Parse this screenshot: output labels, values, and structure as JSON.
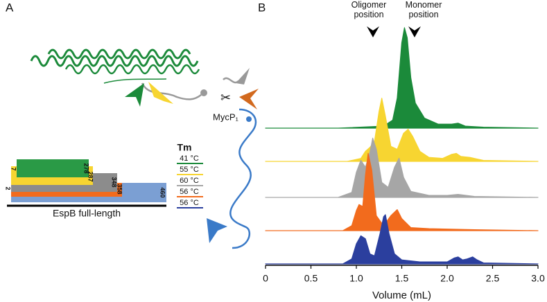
{
  "panel_a": {
    "label": "A",
    "protease_label": "MycP₁",
    "tm_title": "Tm",
    "tm_values": [
      "41 °C",
      "55 °C",
      "60 °C",
      "56 °C",
      "56 °C"
    ],
    "start_labels": [
      7,
      2
    ],
    "end_labels": [
      278,
      287,
      348,
      358,
      460
    ],
    "bar_caption": "EspB full-length"
  },
  "chart_data": {
    "type": "ridgeline",
    "panel_label": "B",
    "x_label": "Volume (mL)",
    "annotations": [
      "Oligomer position",
      "Monomer position"
    ],
    "xlim": [
      0,
      3
    ],
    "xticks": [
      0,
      0.5,
      {
        "value": 1,
        "label": "1.0"
      },
      1.5,
      {
        "value": 2,
        "label": "2.0"
      },
      2.5,
      {
        "value": 3,
        "label": "3.0"
      }
    ],
    "series": [
      {
        "color": "#1b8a3a",
        "x": [
          0,
          0.8,
          1.3,
          1.4,
          1.45,
          1.5,
          1.53,
          1.56,
          1.6,
          1.65,
          1.75,
          1.9,
          2.05,
          2.12,
          2.2,
          2.4,
          3.0
        ],
        "values": [
          0,
          0,
          0.02,
          0.08,
          0.3,
          0.85,
          1.0,
          0.9,
          0.5,
          0.25,
          0.1,
          0.04,
          0.04,
          0.05,
          0.02,
          0.01,
          0
        ]
      },
      {
        "color": "#f7d531",
        "x": [
          0,
          0.9,
          1.05,
          1.1,
          1.15,
          1.2,
          1.25,
          1.28,
          1.32,
          1.38,
          1.45,
          1.52,
          1.57,
          1.62,
          1.7,
          1.8,
          1.95,
          2.05,
          2.1,
          2.15,
          2.25,
          2.3,
          2.4,
          3.0
        ],
        "values": [
          0,
          0,
          0.03,
          0.1,
          0.14,
          0.2,
          0.5,
          0.63,
          0.45,
          0.15,
          0.12,
          0.28,
          0.32,
          0.25,
          0.1,
          0.04,
          0.03,
          0.07,
          0.08,
          0.05,
          0.04,
          0.03,
          0.01,
          0
        ]
      },
      {
        "color": "#a6a6a6",
        "x": [
          0,
          0.8,
          0.95,
          1.0,
          1.05,
          1.1,
          1.15,
          1.18,
          1.22,
          1.28,
          1.35,
          1.42,
          1.47,
          1.52,
          1.6,
          1.8,
          2.0,
          2.12,
          2.3,
          3.0
        ],
        "values": [
          0,
          0,
          0.05,
          0.25,
          0.37,
          0.3,
          0.45,
          0.59,
          0.48,
          0.15,
          0.1,
          0.3,
          0.39,
          0.2,
          0.06,
          0.02,
          0.02,
          0.03,
          0.01,
          0
        ]
      },
      {
        "color": "#f26b1d",
        "x": [
          0,
          0.85,
          0.95,
          1.0,
          1.03,
          1.07,
          1.1,
          1.13,
          1.17,
          1.22,
          1.3,
          1.38,
          1.45,
          1.5,
          1.6,
          1.8,
          2.3,
          3.0
        ],
        "values": [
          0,
          0,
          0.05,
          0.2,
          0.26,
          0.24,
          0.55,
          0.77,
          0.6,
          0.15,
          0.05,
          0.15,
          0.21,
          0.12,
          0.03,
          0.02,
          0.01,
          0
        ]
      },
      {
        "color": "#2b3f9e",
        "x": [
          0,
          0.85,
          0.95,
          1.0,
          1.05,
          1.1,
          1.15,
          1.2,
          1.26,
          1.3,
          1.32,
          1.36,
          1.42,
          1.5,
          1.7,
          2.0,
          2.08,
          2.12,
          2.17,
          2.22,
          2.28,
          2.33,
          2.4,
          3.0
        ],
        "values": [
          0,
          0,
          0.05,
          0.2,
          0.28,
          0.25,
          0.1,
          0.08,
          0.3,
          0.47,
          0.49,
          0.3,
          0.1,
          0.04,
          0.02,
          0.02,
          0.06,
          0.07,
          0.04,
          0.05,
          0.07,
          0.04,
          0.01,
          0
        ]
      }
    ]
  }
}
